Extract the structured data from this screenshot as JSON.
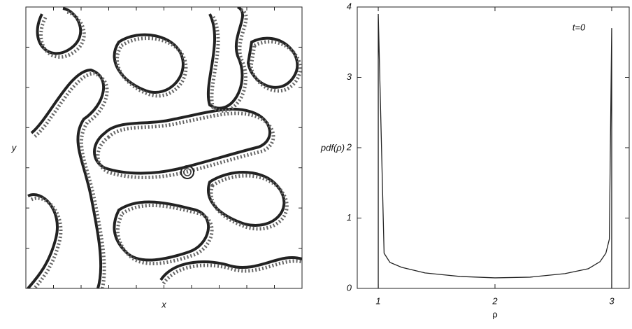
{
  "chart_data": [
    {
      "type": "contour",
      "xlabel": "x",
      "ylabel": "y"
    },
    {
      "type": "line",
      "xlabel": "ρ",
      "ylabel": "pdf(ρ)",
      "annotation": "t=0",
      "color": "#222222",
      "x": [
        1,
        1,
        1.05,
        1.1,
        1.2,
        1.4,
        1.7,
        2,
        2.3,
        2.6,
        2.8,
        2.9,
        2.95,
        2.98,
        3,
        3
      ],
      "y": [
        0,
        3.9,
        0.5,
        0.37,
        0.3,
        0.22,
        0.17,
        0.15,
        0.16,
        0.21,
        0.28,
        0.38,
        0.5,
        0.7,
        3.7,
        0
      ],
      "xlim": [
        0.82,
        3.15
      ],
      "ylim": [
        0,
        4
      ],
      "xticks": [
        1,
        2,
        3
      ],
      "yticks": [
        0,
        1,
        2,
        3,
        4
      ]
    }
  ]
}
